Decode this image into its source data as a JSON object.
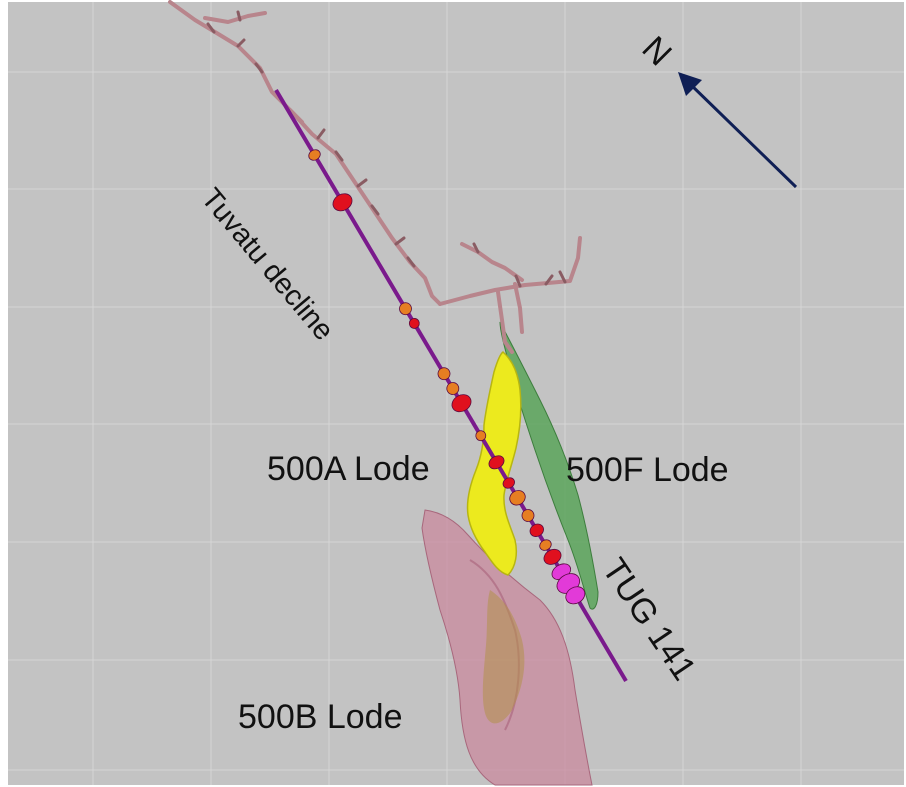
{
  "north_label": "N",
  "labels": {
    "decline": "Tuvatu decline",
    "lode_500a": "500A Lode",
    "lode_500f": "500F Lode",
    "lode_500b": "500B Lode",
    "drillhole": "TUG 141"
  },
  "colors": {
    "background": "#c3c3c3",
    "grid": "#d6d6d6",
    "decline": "#b8858c",
    "decline_outline": "#8a5c63",
    "drillhole": "#7a1a8c",
    "lode_500a": "#ecea1e",
    "lode_500f": "#5aa55a",
    "lode_500b": "#c98a9e",
    "north_arrow": "#0f1f55",
    "assay_high": "#e0101e",
    "assay_mid": "#e67e22",
    "assay_pink": "#e23ad8"
  }
}
